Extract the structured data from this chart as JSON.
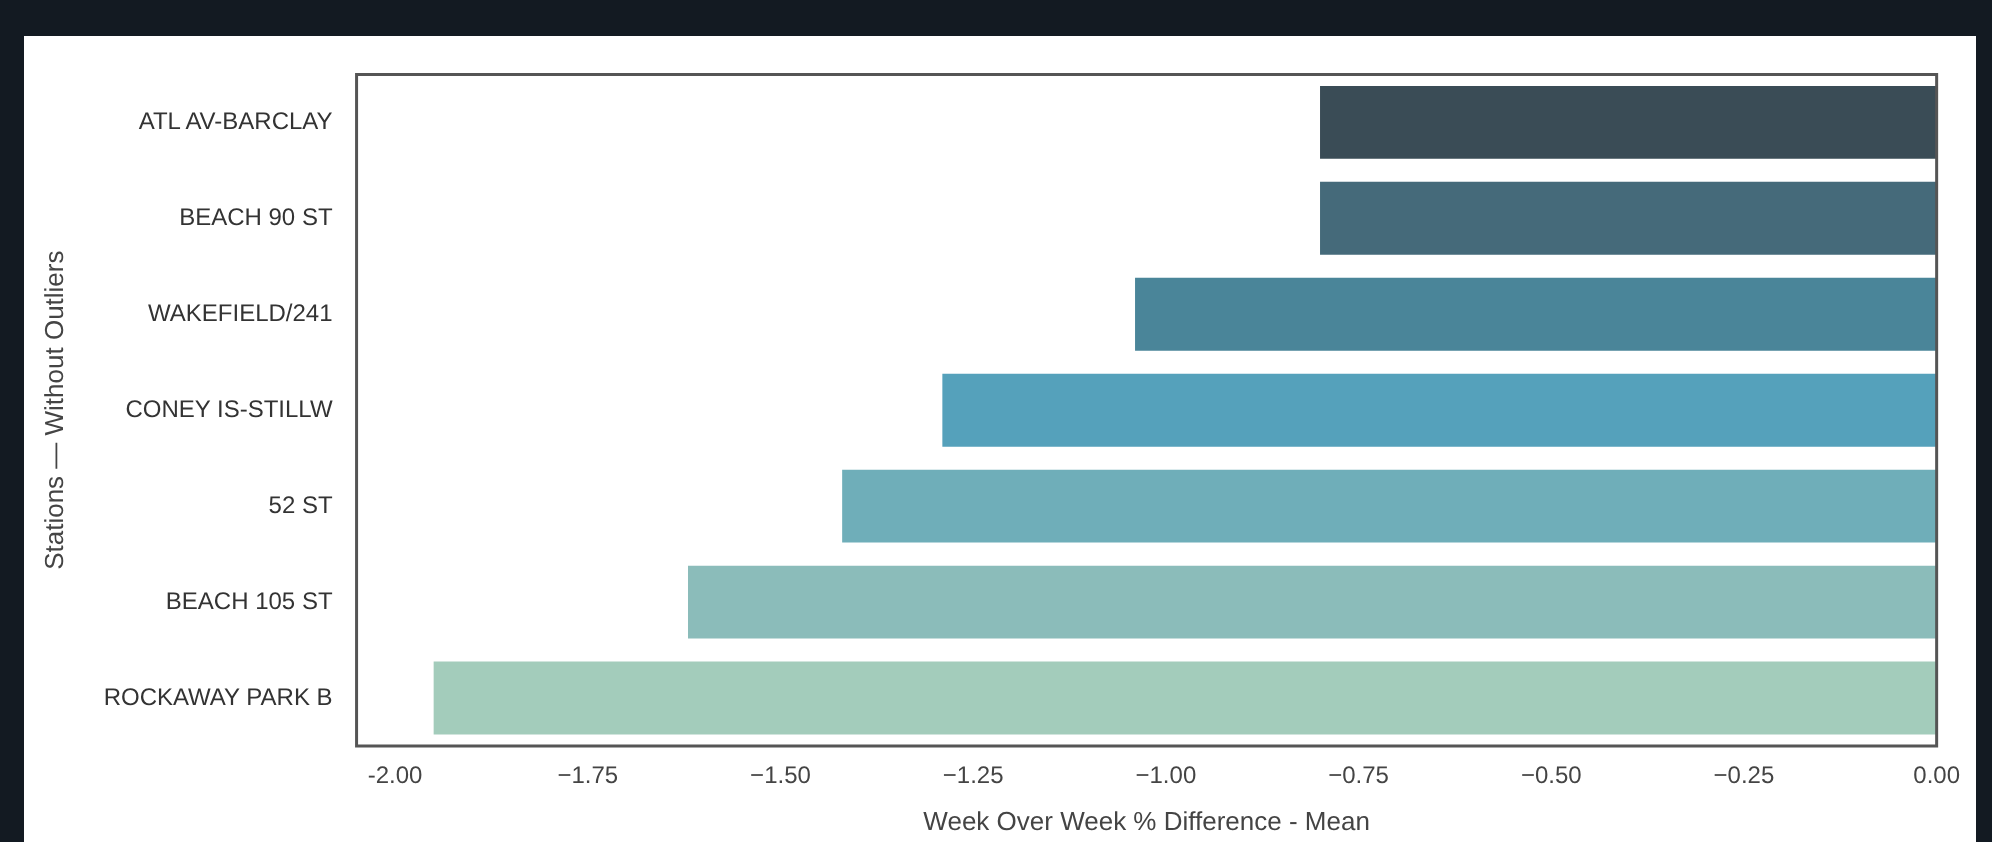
{
  "chart_data": {
    "type": "bar",
    "orientation": "horizontal",
    "xlabel": "Week Over Week % Difference - Mean",
    "ylabel": "Stations — Without Outliers",
    "categories": [
      "ATL AV-BARCLAY",
      "BEACH 90 ST",
      "WAKEFIELD/241",
      "CONEY IS-STILLW",
      "52 ST",
      "BEACH 105 ST",
      "ROCKAWAY PARK B"
    ],
    "values": [
      -0.8,
      -0.8,
      -1.04,
      -1.29,
      -1.42,
      -1.62,
      -1.95
    ],
    "colors": [
      "#3a4c56",
      "#456a7a",
      "#4a8599",
      "#55a1bb",
      "#6faeb9",
      "#8bbcba",
      "#a3ccbb"
    ],
    "xlim": [
      -2.05,
      0
    ],
    "xticks": [
      {
        "value": -2,
        "label": "-2.00"
      },
      {
        "value": -1.75,
        "label": "−1.75"
      },
      {
        "value": -1.5,
        "label": "−1.50"
      },
      {
        "value": -1.25,
        "label": "−1.25"
      },
      {
        "value": -1,
        "label": "−1.00"
      },
      {
        "value": -0.75,
        "label": "−0.75"
      },
      {
        "value": -0.5,
        "label": "−0.50"
      },
      {
        "value": -0.25,
        "label": "−0.25"
      },
      {
        "value": 0,
        "label": "0.00"
      }
    ],
    "grid": false,
    "legend": false
  }
}
